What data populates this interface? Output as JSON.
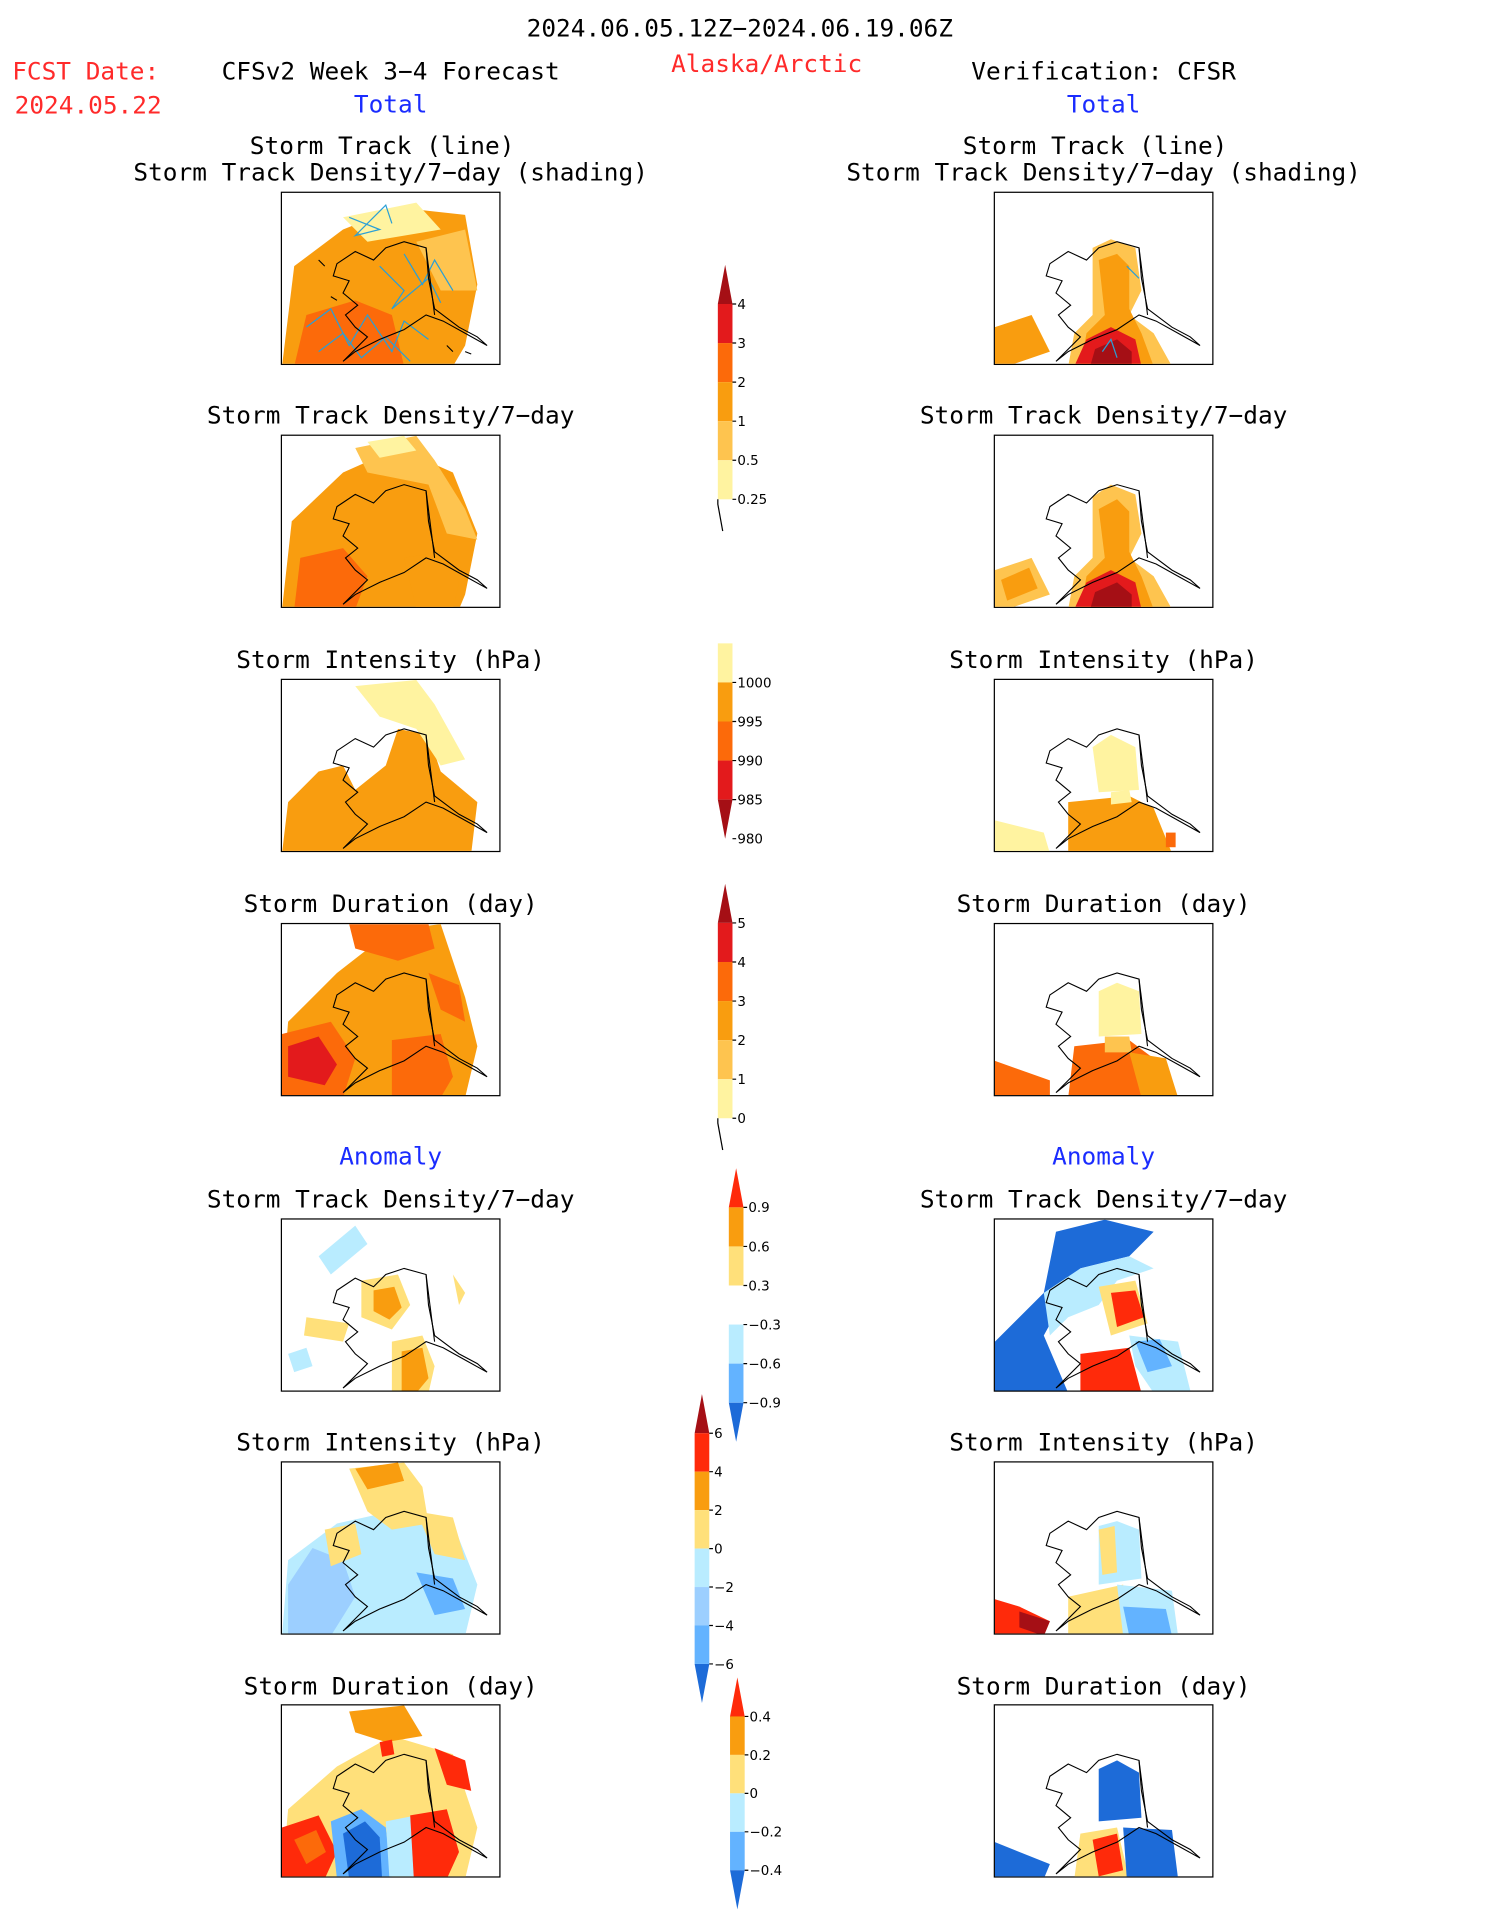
{
  "header": {
    "period": "2024.06.05.12Z−2024.06.19.06Z",
    "fcst_label": "FCST Date:",
    "fcst_date": "2024.05.22",
    "model": "CFSv2 Week 3−4 Forecast",
    "region": "Alaska/Arctic",
    "verification": "Verification: CFSR"
  },
  "sections": {
    "total": "Total",
    "anomaly": "Anomaly"
  },
  "titles": {
    "track_line": "Storm Track (line)",
    "track_shading": "Storm Track Density/7−day (shading)",
    "density": "Storm Track Density/7−day",
    "intensity": "Storm Intensity (hPa)",
    "duration": "Storm Duration (day)"
  },
  "colorbars": {
    "density_total": {
      "labels": [
        "4",
        "3",
        "2",
        "1",
        "0.5",
        "0.25"
      ],
      "colors": [
        "#a50f15",
        "#e31a1c",
        "#fc6a0a",
        "#f99d0f",
        "#fec44f",
        "#fff3a0"
      ]
    },
    "intensity_total": {
      "labels": [
        "1000",
        "995",
        "990",
        "985",
        "980"
      ],
      "colors": [
        "#fff3a0",
        "#f99d0f",
        "#fc6a0a",
        "#e31a1c",
        "#a50f15"
      ]
    },
    "duration_total": {
      "labels": [
        "5",
        "4",
        "3",
        "2",
        "1",
        "0"
      ],
      "colors": [
        "#a50f15",
        "#e31a1c",
        "#fc6a0a",
        "#f99d0f",
        "#fec44f",
        "#fff3a0"
      ]
    },
    "density_anom": {
      "labels": [
        "0.9",
        "0.6",
        "0.3",
        "−0.3",
        "−0.6",
        "−0.9"
      ],
      "colors": [
        "#ff2a0a",
        "#f99d0f",
        "#ffe07a",
        "#ffffff",
        "#b9ecff",
        "#63b3ff",
        "#1d6bd8"
      ]
    },
    "intensity_anom": {
      "labels": [
        "6",
        "4",
        "2",
        "0",
        "−2",
        "−4",
        "−6"
      ],
      "colors": [
        "#a50f15",
        "#ff2a0a",
        "#f99d0f",
        "#ffe07a",
        "#b9ecff",
        "#9ccfff",
        "#63b3ff",
        "#1d6bd8"
      ]
    },
    "duration_anom": {
      "labels": [
        "0.4",
        "0.2",
        "0",
        "−0.2",
        "−0.4"
      ],
      "colors": [
        "#ff2a0a",
        "#f99d0f",
        "#ffe07a",
        "#b9ecff",
        "#63b3ff",
        "#1d6bd8"
      ]
    }
  }
}
